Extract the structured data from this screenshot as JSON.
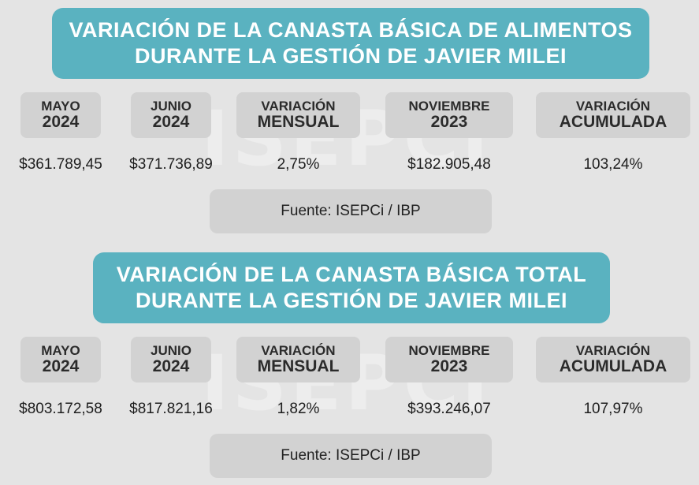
{
  "watermark": "ISEPCi",
  "headers": {
    "col1": [
      "MAYO",
      "2024"
    ],
    "col2": [
      "JUNIO",
      "2024"
    ],
    "col3": [
      "VARIACIÓN",
      "MENSUAL"
    ],
    "col4": [
      "NOVIEMBRE",
      "2023"
    ],
    "col5": [
      "VARIACIÓN",
      "ACUMULADA"
    ]
  },
  "sections": [
    {
      "title_line1": "VARIACIÓN DE LA CANASTA BÁSICA DE ALIMENTOS",
      "title_line2": "DURANTE LA GESTIÓN DE JAVIER MILEI",
      "values": [
        "$361.789,45",
        "$371.736,89",
        "2,75%",
        "$182.905,48",
        "103,24%"
      ],
      "source": "Fuente: ISEPCi / IBP"
    },
    {
      "title_line1": "VARIACIÓN DE LA CANASTA BÁSICA TOTAL",
      "title_line2": "DURANTE LA GESTIÓN DE JAVIER MILEI",
      "values": [
        "$803.172,58",
        "$817.821,16",
        "1,82%",
        "$393.246,07",
        "107,97%"
      ],
      "source": "Fuente: ISEPCi / IBP"
    }
  ],
  "colors": {
    "banner": "#5ab2c0",
    "header_box": "#d2d2d2",
    "background": "#e4e4e4"
  }
}
